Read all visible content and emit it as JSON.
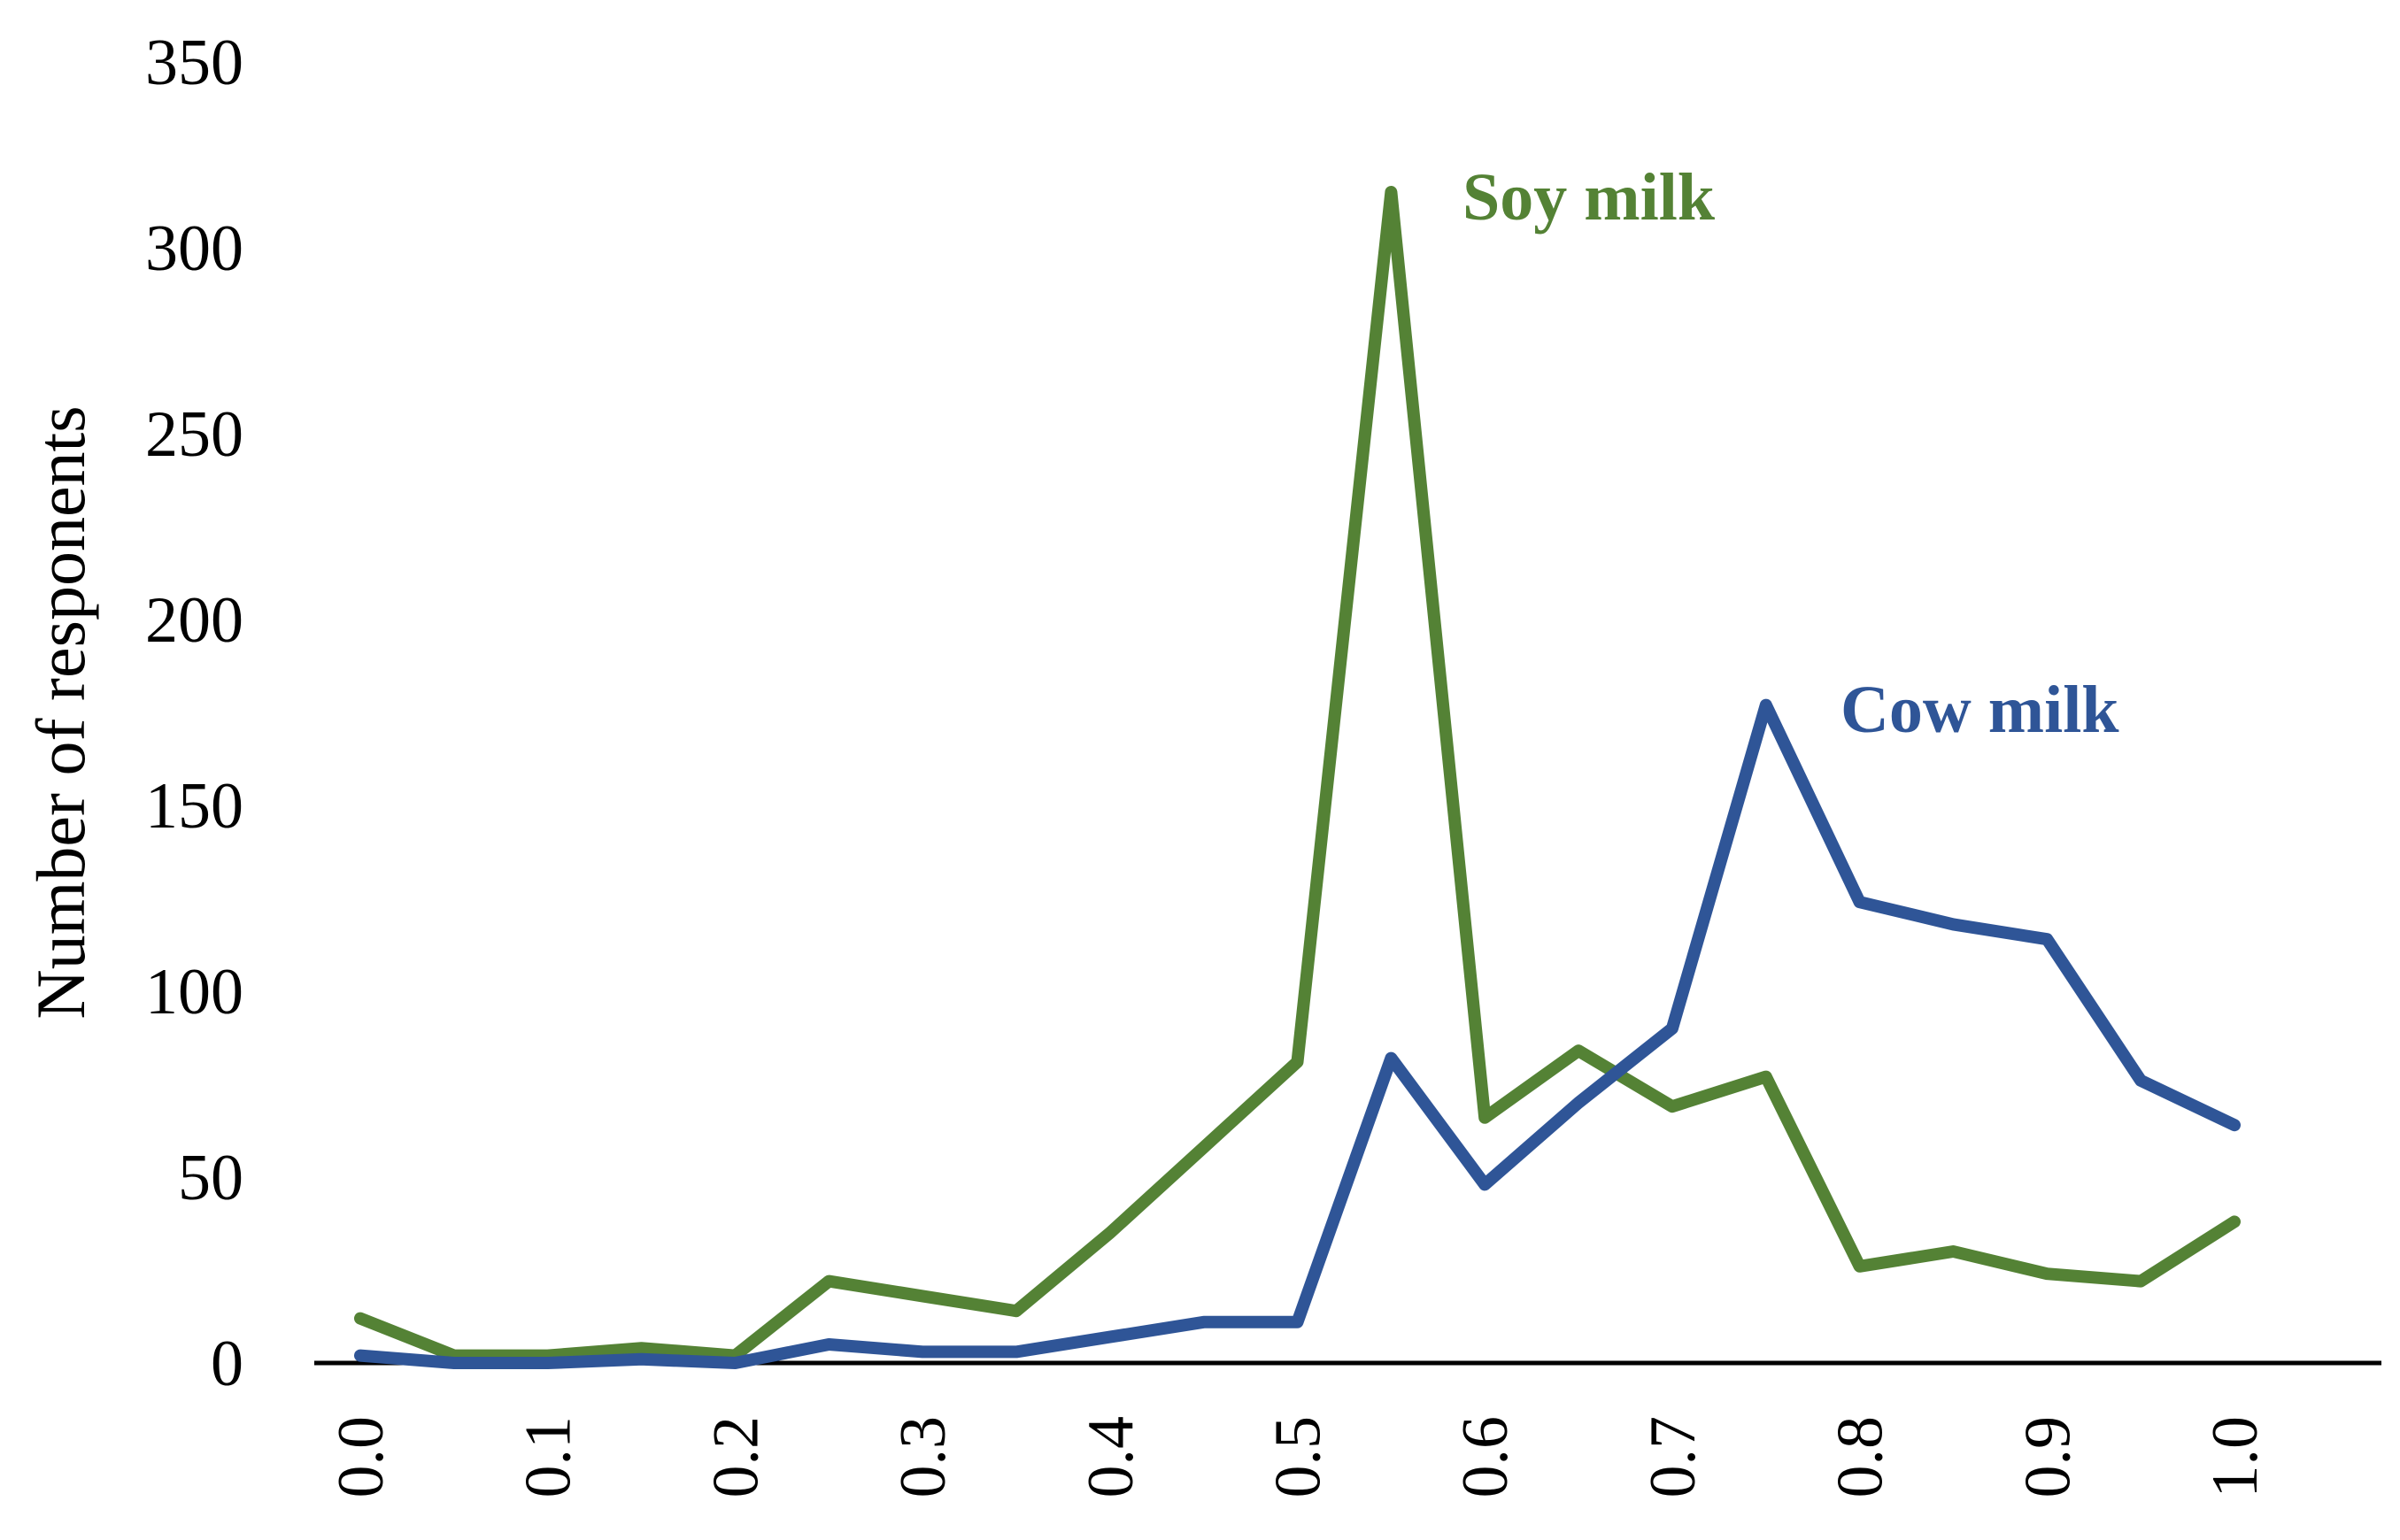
{
  "chart_data": {
    "type": "line",
    "title": "",
    "xlabel": "",
    "ylabel": "Number of responents",
    "x": [
      0.0,
      0.05,
      0.1,
      0.15,
      0.2,
      0.25,
      0.3,
      0.35,
      0.4,
      0.45,
      0.5,
      0.55,
      0.6,
      0.65,
      0.7,
      0.75,
      0.8,
      0.85,
      0.9,
      0.95,
      1.0
    ],
    "x_ticks": [
      "0.0",
      "0.1",
      "0.2",
      "0.3",
      "0.4",
      "0.5",
      "0.6",
      "0.7",
      "0.8",
      "0.9",
      "1.0"
    ],
    "y_ticks": [
      "0",
      "50",
      "100",
      "150",
      "200",
      "250",
      "300",
      "350"
    ],
    "xlim": [
      0.0,
      1.0
    ],
    "ylim": [
      0,
      350
    ],
    "grid": false,
    "legend": "none (series labelled inline)",
    "series": [
      {
        "name": "Soy milk",
        "color": "#548235",
        "values": [
          12,
          2,
          2,
          4,
          2,
          22,
          18,
          14,
          35,
          58,
          81,
          315,
          66,
          84,
          69,
          77,
          26,
          30,
          24,
          22,
          38
        ]
      },
      {
        "name": "Cow milk",
        "color": "#2F5597",
        "values": [
          2,
          0,
          0,
          1,
          0,
          5,
          3,
          3,
          7,
          11,
          11,
          82,
          48,
          70,
          90,
          177,
          124,
          118,
          114,
          76,
          64
        ]
      }
    ]
  }
}
